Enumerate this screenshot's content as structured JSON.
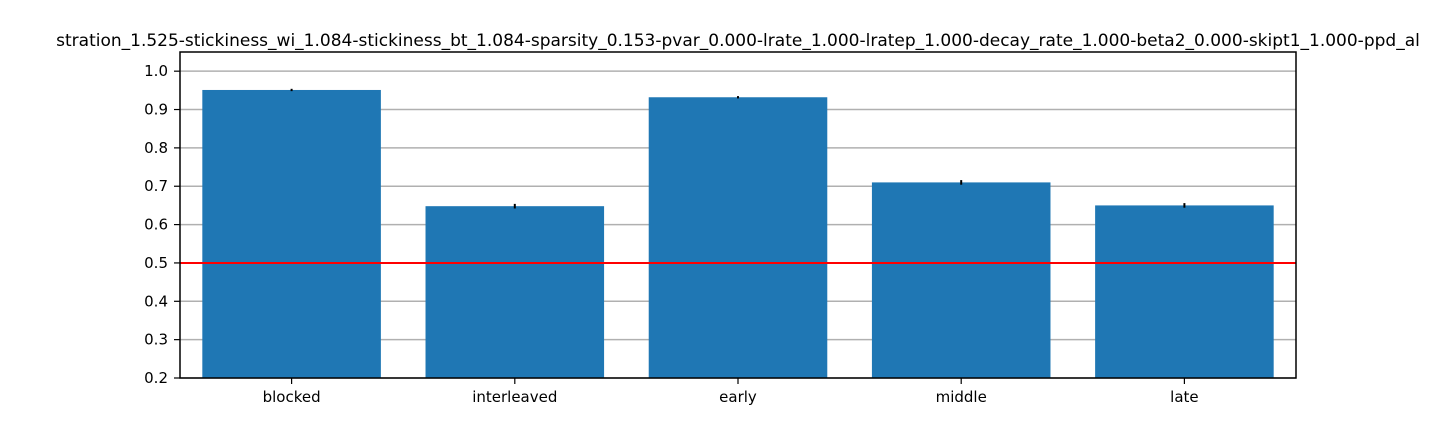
{
  "chart_data": {
    "type": "bar",
    "title": "stration_1.525-stickiness_wi_1.084-stickiness_bt_1.084-sparsity_0.153-pvar_0.000-lrate_1.000-lratep_1.000-decay_rate_1.000-beta2_0.000-skipt1_1.000-ppd_al",
    "xlabel": "",
    "ylabel": "",
    "categories": [
      "blocked",
      "interleaved",
      "early",
      "middle",
      "late"
    ],
    "values": [
      0.951,
      0.648,
      0.932,
      0.71,
      0.65
    ],
    "errors": [
      0.003,
      0.006,
      0.003,
      0.006,
      0.006
    ],
    "ylim": [
      0.2,
      1.05
    ],
    "yticks": [
      "0.2",
      "0.3",
      "0.4",
      "0.5",
      "0.6",
      "0.7",
      "0.8",
      "0.9",
      "1.0"
    ],
    "reference_line": 0.5,
    "grid": "horizontal",
    "colors": {
      "bar": "#1f77b4",
      "reference_line": "#ff0000",
      "grid": "#b0b0b0",
      "error_bar": "#000000"
    }
  }
}
